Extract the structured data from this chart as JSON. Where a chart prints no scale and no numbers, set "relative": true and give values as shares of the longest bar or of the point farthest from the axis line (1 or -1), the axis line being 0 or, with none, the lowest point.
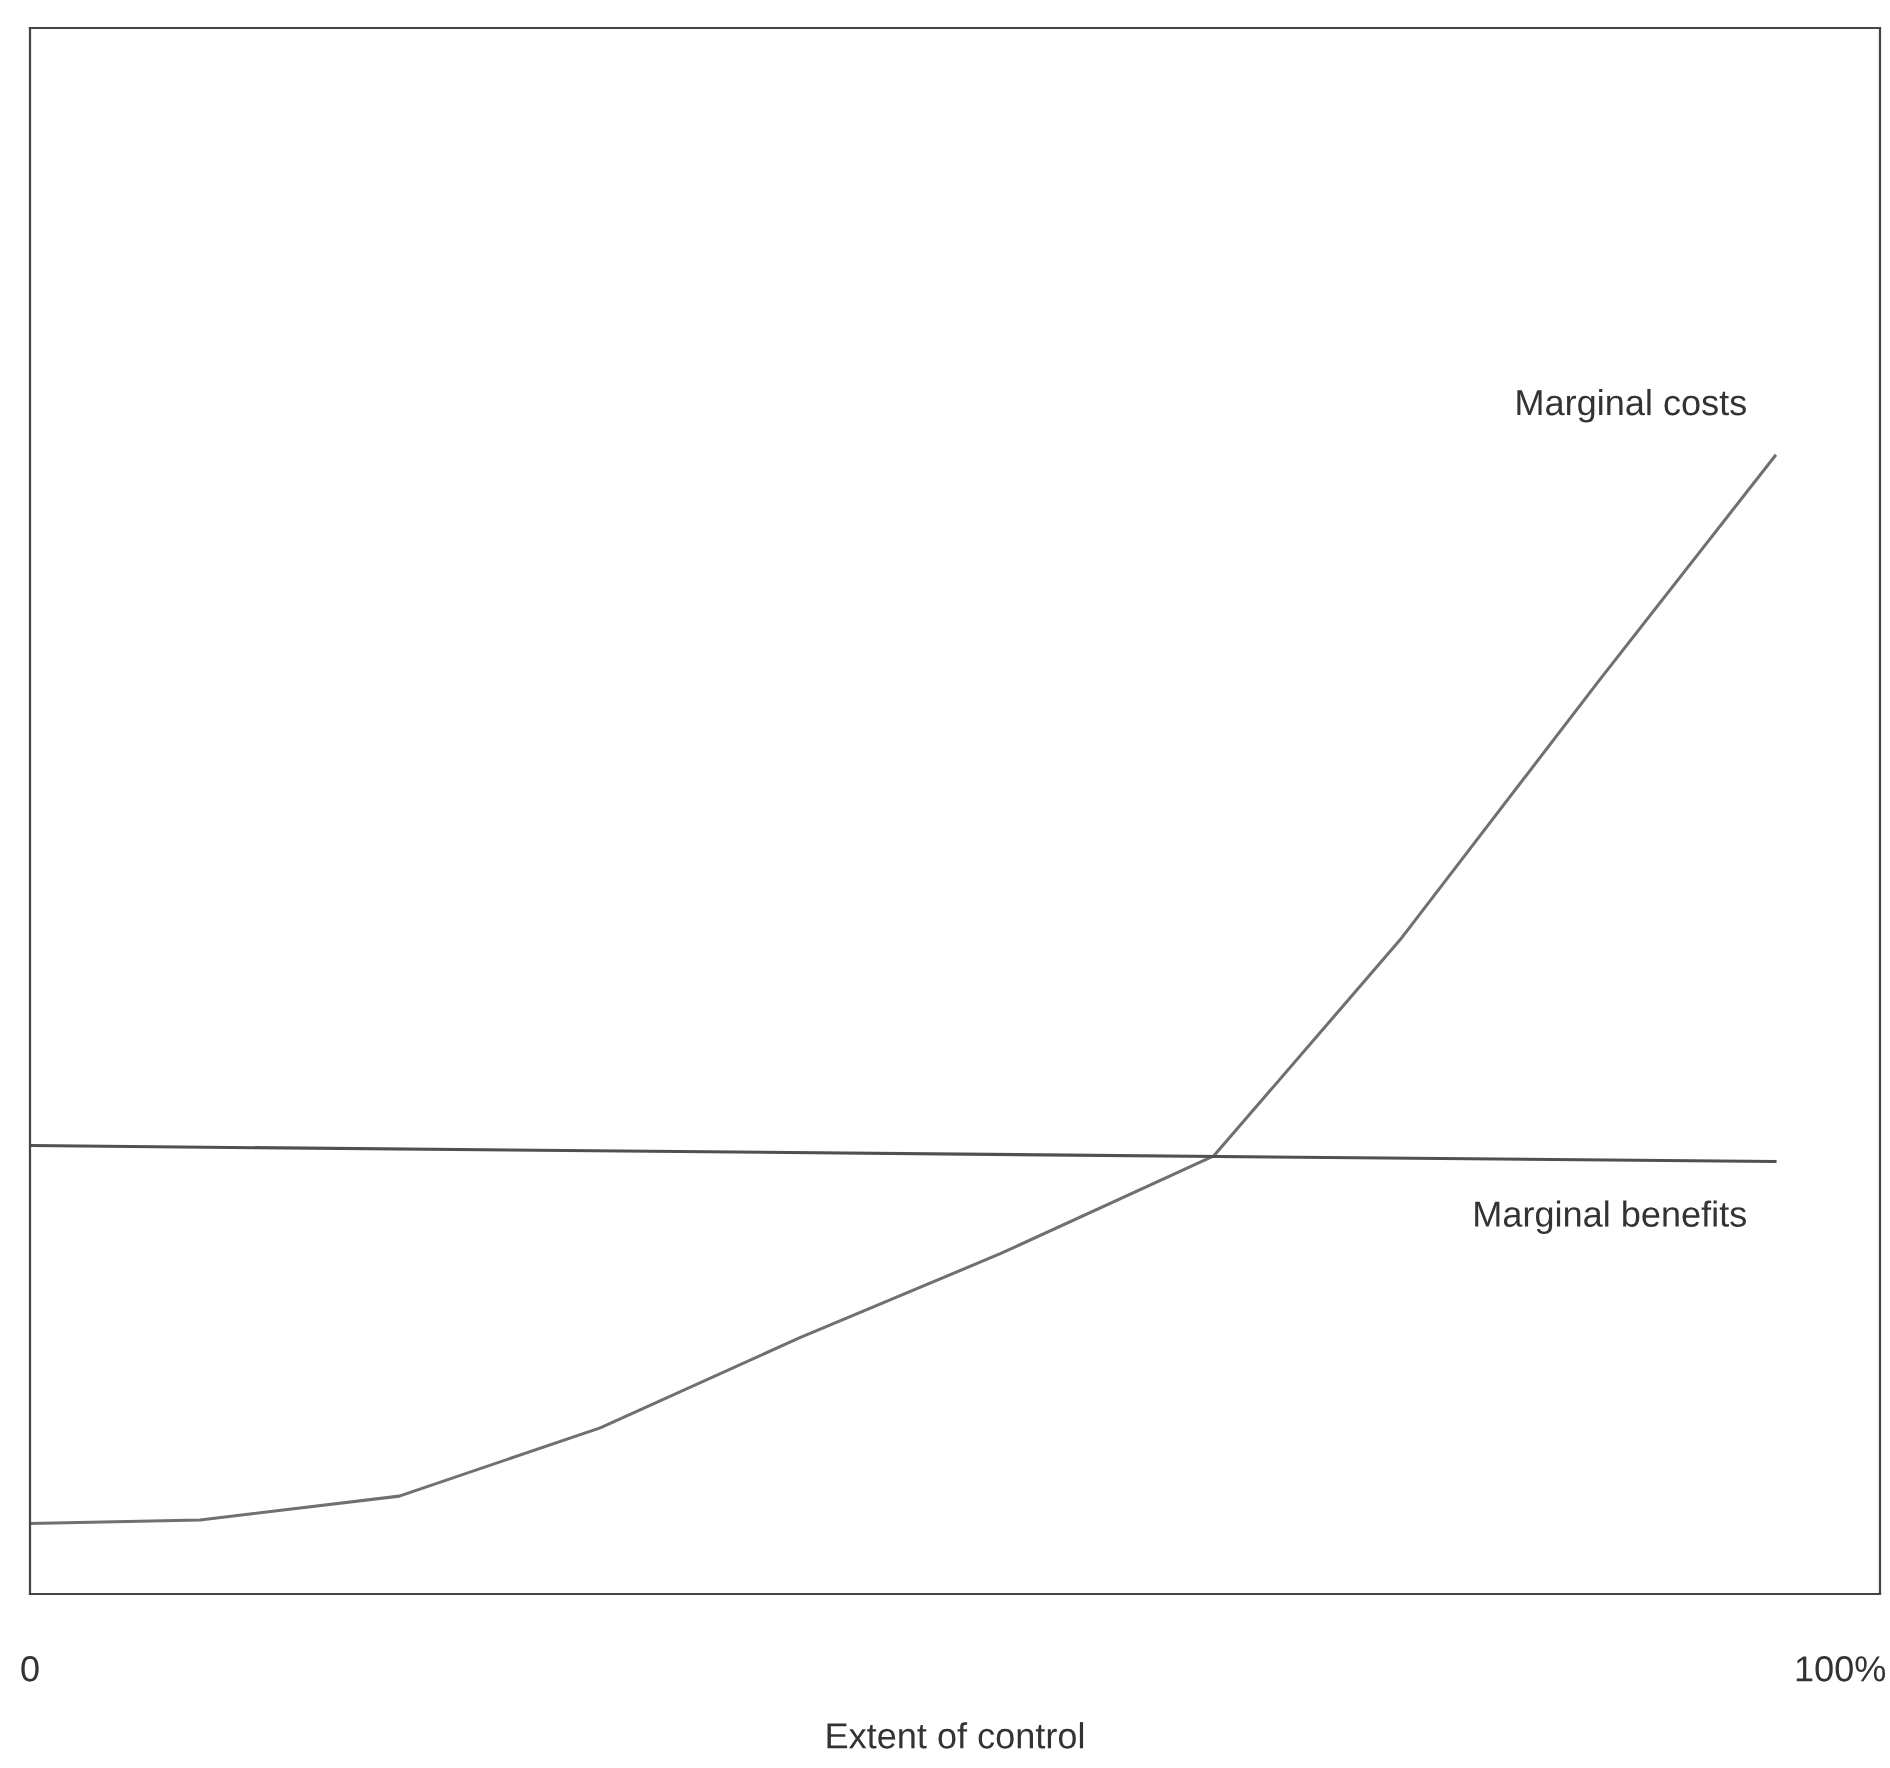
{
  "chart_data": {
    "type": "line",
    "relative": true,
    "xlabel": "Extent of control",
    "xlim": [
      0,
      102.2
    ],
    "xticks": [
      0,
      {
        "value": 100,
        "label": "100%"
      }
    ],
    "grid": false,
    "legend": false,
    "series": [
      {
        "name": "Marginal costs",
        "color": "#707070",
        "x": [
          0,
          9.4,
          20.4,
          31.5,
          42.5,
          53.6,
          65.4,
          75.7,
          86.7,
          96.4
        ],
        "values": [
          0.062,
          0.065,
          0.086,
          0.146,
          0.225,
          0.299,
          0.385,
          0.575,
          0.803,
          1.0
        ]
      },
      {
        "name": "Marginal benefits",
        "color": "#505050",
        "x": [
          0,
          96.4
        ],
        "values": [
          0.394,
          0.38
        ]
      }
    ]
  }
}
